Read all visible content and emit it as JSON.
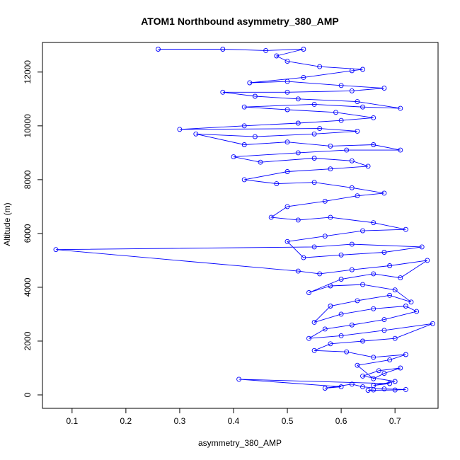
{
  "chart_data": {
    "type": "line",
    "title": "ATOM1 Northbound asymmetry_380_AMP",
    "xlabel": "asymmetry_380_AMP",
    "ylabel": "Altitude (m)",
    "xlim": [
      0.045,
      0.78
    ],
    "ylim": [
      -500,
      13100
    ],
    "xticks": [
      "0.1",
      "0.2",
      "0.3",
      "0.4",
      "0.5",
      "0.6",
      "0.7"
    ],
    "xtick_values": [
      0.1,
      0.2,
      0.3,
      0.4,
      0.5,
      0.6,
      0.7
    ],
    "yticks": [
      "0",
      "2000",
      "4000",
      "6000",
      "8000",
      "10000",
      "12000"
    ],
    "ytick_values": [
      0,
      2000,
      4000,
      6000,
      8000,
      10000,
      12000
    ],
    "grid": false,
    "series_color": "#0000ff",
    "marker": "open-circle",
    "series": [
      {
        "name": "",
        "points": [
          [
            0.66,
            180
          ],
          [
            0.65,
            170
          ],
          [
            0.7,
            180
          ],
          [
            0.72,
            200
          ],
          [
            0.68,
            220
          ],
          [
            0.64,
            300
          ],
          [
            0.62,
            400
          ],
          [
            0.57,
            250
          ],
          [
            0.6,
            300
          ],
          [
            0.41,
            580
          ],
          [
            0.69,
            420
          ],
          [
            0.66,
            350
          ],
          [
            0.7,
            500
          ],
          [
            0.64,
            700
          ],
          [
            0.67,
            900
          ],
          [
            0.71,
            1000
          ],
          [
            0.68,
            800
          ],
          [
            0.66,
            600
          ],
          [
            0.63,
            1100
          ],
          [
            0.69,
            1300
          ],
          [
            0.72,
            1500
          ],
          [
            0.66,
            1400
          ],
          [
            0.61,
            1600
          ],
          [
            0.55,
            1650
          ],
          [
            0.58,
            1900
          ],
          [
            0.64,
            2000
          ],
          [
            0.7,
            2100
          ],
          [
            0.77,
            2650
          ],
          [
            0.68,
            2400
          ],
          [
            0.6,
            2200
          ],
          [
            0.54,
            2100
          ],
          [
            0.57,
            2450
          ],
          [
            0.62,
            2600
          ],
          [
            0.68,
            2800
          ],
          [
            0.74,
            3100
          ],
          [
            0.72,
            3300
          ],
          [
            0.66,
            3200
          ],
          [
            0.6,
            3000
          ],
          [
            0.55,
            2700
          ],
          [
            0.58,
            3300
          ],
          [
            0.63,
            3500
          ],
          [
            0.69,
            3700
          ],
          [
            0.73,
            3450
          ],
          [
            0.7,
            3900
          ],
          [
            0.64,
            4100
          ],
          [
            0.58,
            4050
          ],
          [
            0.54,
            3800
          ],
          [
            0.6,
            4300
          ],
          [
            0.66,
            4500
          ],
          [
            0.71,
            4350
          ],
          [
            0.76,
            5000
          ],
          [
            0.69,
            4800
          ],
          [
            0.62,
            4650
          ],
          [
            0.56,
            4500
          ],
          [
            0.52,
            4600
          ],
          [
            0.07,
            5400
          ],
          [
            0.55,
            5500
          ],
          [
            0.62,
            5600
          ],
          [
            0.75,
            5500
          ],
          [
            0.68,
            5300
          ],
          [
            0.6,
            5200
          ],
          [
            0.53,
            5100
          ],
          [
            0.5,
            5700
          ],
          [
            0.57,
            5900
          ],
          [
            0.64,
            6100
          ],
          [
            0.72,
            6150
          ],
          [
            0.66,
            6400
          ],
          [
            0.58,
            6600
          ],
          [
            0.52,
            6500
          ],
          [
            0.47,
            6600
          ],
          [
            0.5,
            7000
          ],
          [
            0.57,
            7200
          ],
          [
            0.63,
            7400
          ],
          [
            0.68,
            7500
          ],
          [
            0.62,
            7700
          ],
          [
            0.55,
            7900
          ],
          [
            0.48,
            7850
          ],
          [
            0.42,
            8000
          ],
          [
            0.5,
            8300
          ],
          [
            0.58,
            8400
          ],
          [
            0.65,
            8500
          ],
          [
            0.62,
            8700
          ],
          [
            0.55,
            8800
          ],
          [
            0.45,
            8650
          ],
          [
            0.4,
            8850
          ],
          [
            0.52,
            9000
          ],
          [
            0.61,
            9100
          ],
          [
            0.71,
            9100
          ],
          [
            0.66,
            9300
          ],
          [
            0.58,
            9250
          ],
          [
            0.5,
            9400
          ],
          [
            0.42,
            9300
          ],
          [
            0.33,
            9700
          ],
          [
            0.44,
            9600
          ],
          [
            0.55,
            9700
          ],
          [
            0.63,
            9800
          ],
          [
            0.56,
            9900
          ],
          [
            0.3,
            9870
          ],
          [
            0.42,
            10000
          ],
          [
            0.52,
            10100
          ],
          [
            0.6,
            10200
          ],
          [
            0.66,
            10300
          ],
          [
            0.59,
            10500
          ],
          [
            0.5,
            10600
          ],
          [
            0.42,
            10700
          ],
          [
            0.55,
            10800
          ],
          [
            0.64,
            10700
          ],
          [
            0.71,
            10650
          ],
          [
            0.63,
            10900
          ],
          [
            0.52,
            11000
          ],
          [
            0.44,
            11100
          ],
          [
            0.38,
            11250
          ],
          [
            0.5,
            11250
          ],
          [
            0.62,
            11300
          ],
          [
            0.68,
            11400
          ],
          [
            0.6,
            11500
          ],
          [
            0.5,
            11650
          ],
          [
            0.43,
            11600
          ],
          [
            0.53,
            11800
          ],
          [
            0.62,
            12050
          ],
          [
            0.64,
            12100
          ],
          [
            0.56,
            12200
          ],
          [
            0.5,
            12400
          ],
          [
            0.48,
            12600
          ],
          [
            0.53,
            12850
          ],
          [
            0.46,
            12800
          ],
          [
            0.38,
            12850
          ],
          [
            0.26,
            12850
          ]
        ]
      }
    ]
  }
}
